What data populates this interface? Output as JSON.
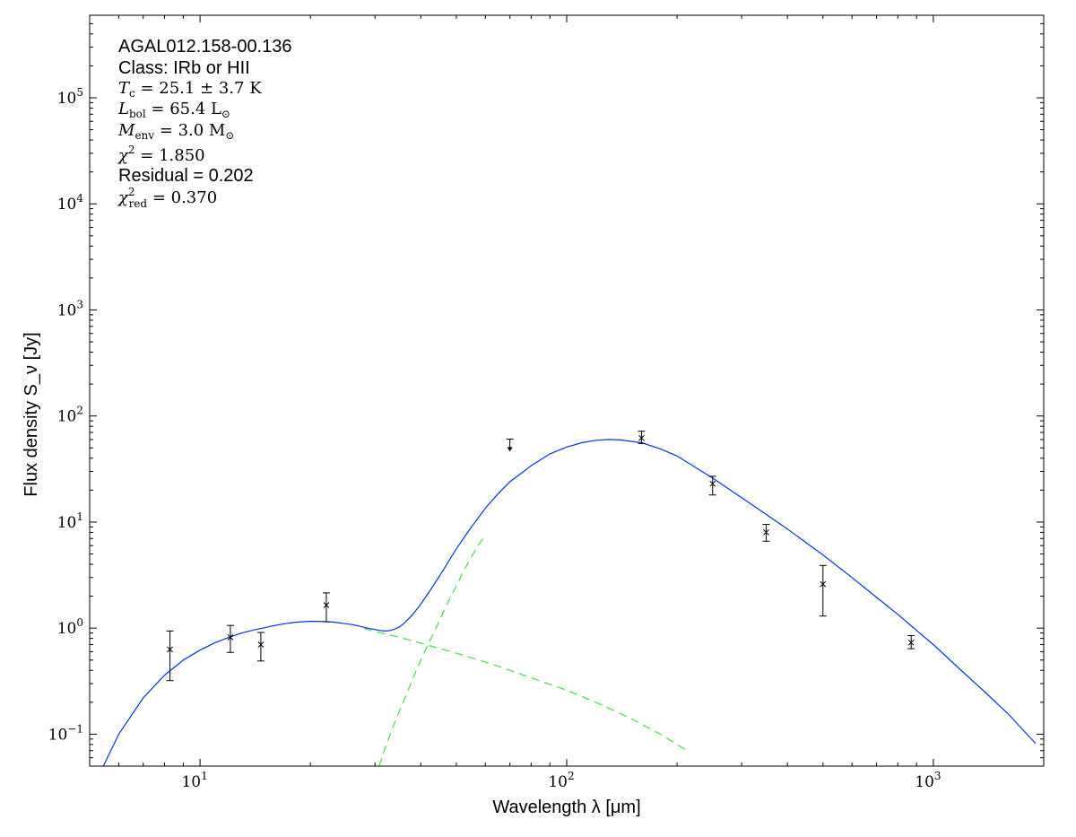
{
  "chart_data": {
    "type": "scatter",
    "xscale": "log",
    "yscale": "log",
    "xlim": [
      5,
      2000
    ],
    "ylim": [
      0.05,
      600000
    ],
    "xlabel": "Wavelength λ [μm]",
    "ylabel": "Flux density S_ν [Jy]",
    "x_ticks": [
      {
        "value": 10,
        "base": "10",
        "exp": "1"
      },
      {
        "value": 100,
        "base": "10",
        "exp": "2"
      },
      {
        "value": 1000,
        "base": "10",
        "exp": "3"
      }
    ],
    "y_ticks": [
      {
        "value": 0.1,
        "base": "10",
        "exp": "−1"
      },
      {
        "value": 1,
        "base": "10",
        "exp": "0"
      },
      {
        "value": 10,
        "base": "10",
        "exp": "1"
      },
      {
        "value": 100,
        "base": "10",
        "exp": "2"
      },
      {
        "value": 1000,
        "base": "10",
        "exp": "3"
      },
      {
        "value": 10000,
        "base": "10",
        "exp": "4"
      },
      {
        "value": 100000,
        "base": "10",
        "exp": "5"
      }
    ],
    "annotations": {
      "source_name": "AGAL012.158-00.136",
      "class_line": "Class: IRb or HII",
      "tc": {
        "symbol": "T",
        "sub": "c",
        "rest": " = 25.1 ± 3.7 K"
      },
      "lbol": {
        "symbol": "L",
        "sub": "bol",
        "rest": " = 65.4 L",
        "unit_sub": "⊙"
      },
      "menv": {
        "symbol": "M",
        "sub": "env",
        "rest": " = 3.0 M",
        "unit_sub": "⊙"
      },
      "chi2": {
        "symbol": "χ",
        "sup": "2",
        "rest": " = 1.850"
      },
      "residual_line": "Residual = 0.202",
      "chi2red": {
        "symbol": "χ",
        "sup": "2",
        "sub": "red",
        "rest": " = 0.370"
      }
    },
    "data_points": [
      {
        "x": 8.28,
        "y": 0.63,
        "ylo": 0.32,
        "yhi": 0.94
      },
      {
        "x": 12.1,
        "y": 0.82,
        "ylo": 0.59,
        "yhi": 1.06
      },
      {
        "x": 14.65,
        "y": 0.7,
        "ylo": 0.49,
        "yhi": 0.91
      },
      {
        "x": 22.1,
        "y": 1.65,
        "ylo": 1.15,
        "yhi": 2.15
      },
      {
        "x": 160,
        "y": 62,
        "ylo": 55,
        "yhi": 72
      },
      {
        "x": 250,
        "y": 23,
        "ylo": 18,
        "yhi": 27
      },
      {
        "x": 350,
        "y": 8.0,
        "ylo": 6.6,
        "yhi": 9.5
      },
      {
        "x": 500,
        "y": 2.6,
        "ylo": 1.3,
        "yhi": 3.9
      },
      {
        "x": 870,
        "y": 0.73,
        "ylo": 0.64,
        "yhi": 0.85
      }
    ],
    "upper_limits": [
      {
        "x": 70,
        "y": 55
      }
    ],
    "model_total": {
      "color": "#0033ee",
      "points": [
        [
          5.3,
          0.041
        ],
        [
          6,
          0.1
        ],
        [
          7,
          0.22
        ],
        [
          8,
          0.36
        ],
        [
          9,
          0.5
        ],
        [
          10,
          0.62
        ],
        [
          11,
          0.73
        ],
        [
          12,
          0.82
        ],
        [
          13,
          0.9
        ],
        [
          14,
          0.96
        ],
        [
          15,
          1.01
        ],
        [
          16,
          1.06
        ],
        [
          17,
          1.1
        ],
        [
          18,
          1.13
        ],
        [
          19,
          1.15
        ],
        [
          20,
          1.16
        ],
        [
          21,
          1.16
        ],
        [
          22,
          1.15
        ],
        [
          23,
          1.14
        ],
        [
          24,
          1.12
        ],
        [
          25,
          1.1
        ],
        [
          26,
          1.08
        ],
        [
          27,
          1.05
        ],
        [
          28,
          1.02
        ],
        [
          29,
          0.99
        ],
        [
          30,
          0.97
        ],
        [
          31,
          0.95
        ],
        [
          32,
          0.94
        ],
        [
          33,
          0.95
        ],
        [
          34,
          0.98
        ],
        [
          35,
          1.03
        ],
        [
          36,
          1.11
        ],
        [
          38,
          1.34
        ],
        [
          40,
          1.68
        ],
        [
          42,
          2.15
        ],
        [
          44,
          2.75
        ],
        [
          46,
          3.5
        ],
        [
          50,
          5.6
        ],
        [
          55,
          9.0
        ],
        [
          60,
          13.5
        ],
        [
          65,
          18.5
        ],
        [
          70,
          24.0
        ],
        [
          80,
          34.0
        ],
        [
          90,
          44.0
        ],
        [
          100,
          51.0
        ],
        [
          110,
          56.0
        ],
        [
          120,
          59.0
        ],
        [
          130,
          60.0
        ],
        [
          140,
          59.5
        ],
        [
          160,
          56.0
        ],
        [
          180,
          49.0
        ],
        [
          200,
          42.0
        ],
        [
          250,
          26.0
        ],
        [
          300,
          17.0
        ],
        [
          350,
          11.8
        ],
        [
          400,
          8.6
        ],
        [
          500,
          4.9
        ],
        [
          600,
          3.0
        ],
        [
          700,
          1.95
        ],
        [
          800,
          1.35
        ],
        [
          900,
          0.95
        ],
        [
          1000,
          0.7
        ],
        [
          1200,
          0.39
        ],
        [
          1400,
          0.24
        ],
        [
          1600,
          0.155
        ],
        [
          1800,
          0.1
        ],
        [
          1900,
          0.082
        ]
      ]
    },
    "model_components": {
      "color": "#44dd44",
      "warm": [
        [
          28,
          0.99
        ],
        [
          30,
          0.93
        ],
        [
          35,
          0.82
        ],
        [
          40,
          0.72
        ],
        [
          50,
          0.58
        ],
        [
          60,
          0.48
        ],
        [
          70,
          0.4
        ],
        [
          80,
          0.34
        ],
        [
          100,
          0.26
        ],
        [
          120,
          0.2
        ],
        [
          150,
          0.14
        ],
        [
          180,
          0.1
        ],
        [
          200,
          0.08
        ],
        [
          210,
          0.072
        ]
      ],
      "cold": [
        [
          30.8,
          0.05
        ],
        [
          32,
          0.075
        ],
        [
          34,
          0.13
        ],
        [
          36,
          0.21
        ],
        [
          38,
          0.33
        ],
        [
          40,
          0.5
        ],
        [
          42,
          0.72
        ],
        [
          44,
          1.0
        ],
        [
          46,
          1.4
        ],
        [
          48,
          1.9
        ],
        [
          50,
          2.5
        ],
        [
          52,
          3.3
        ],
        [
          55,
          4.7
        ],
        [
          58,
          6.4
        ],
        [
          60,
          7.5
        ]
      ]
    }
  }
}
